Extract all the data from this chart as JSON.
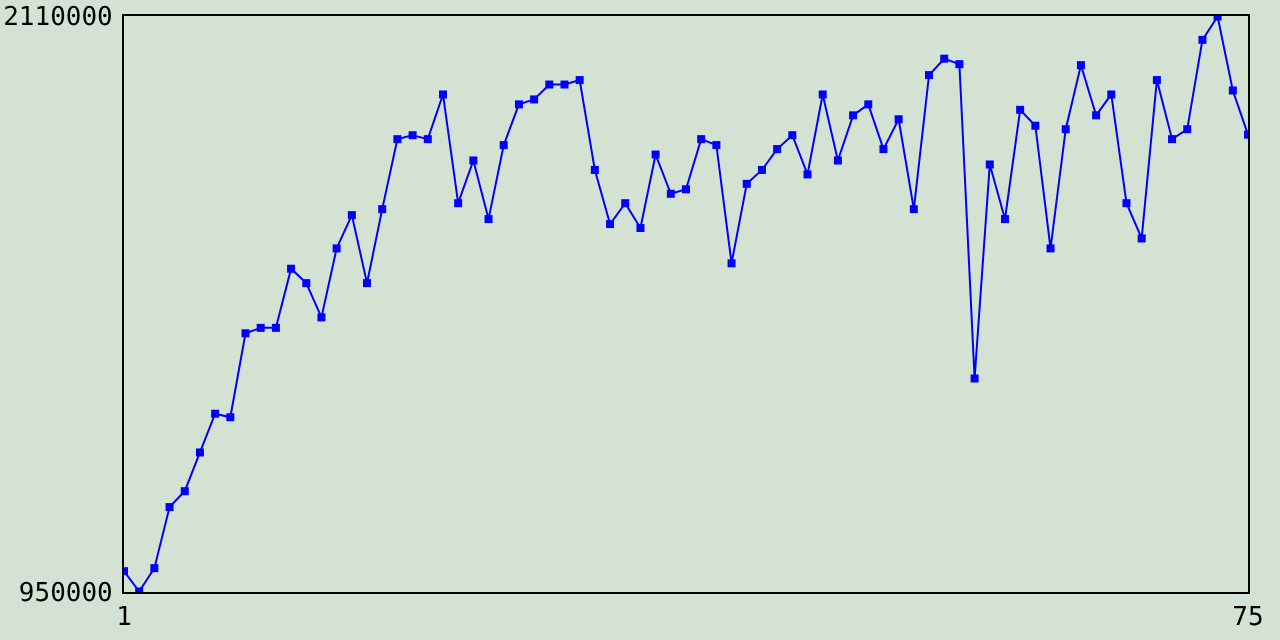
{
  "chart_data": {
    "type": "line",
    "x": [
      1,
      2,
      3,
      4,
      5,
      6,
      7,
      8,
      9,
      10,
      11,
      12,
      13,
      14,
      15,
      16,
      17,
      18,
      19,
      20,
      21,
      22,
      23,
      24,
      25,
      26,
      27,
      28,
      29,
      30,
      31,
      32,
      33,
      34,
      35,
      36,
      37,
      38,
      39,
      40,
      41,
      42,
      43,
      44,
      45,
      46,
      47,
      48,
      49,
      50,
      51,
      52,
      53,
      54,
      55,
      56,
      57,
      58,
      59,
      60,
      61,
      62,
      63,
      64,
      65,
      66,
      67,
      68,
      69,
      70,
      71,
      72,
      73,
      74,
      75
    ],
    "series": [
      {
        "color": "#0000ff",
        "values": [
          992000,
          951000,
          998000,
          1121000,
          1153000,
          1231000,
          1309000,
          1302000,
          1471000,
          1482000,
          1482000,
          1601000,
          1572000,
          1503000,
          1642000,
          1709000,
          1572000,
          1721000,
          1862000,
          1870000,
          1862000,
          1952000,
          1733000,
          1819000,
          1701000,
          1850000,
          1932000,
          1942000,
          1972000,
          1972000,
          1981000,
          1800000,
          1691000,
          1733000,
          1683000,
          1831000,
          1752000,
          1761000,
          1862000,
          1850000,
          1612000,
          1772000,
          1800000,
          1842000,
          1870000,
          1791000,
          1952000,
          1819000,
          1910000,
          1932000,
          1842000,
          1902000,
          1721000,
          1991000,
          2024000,
          2013000,
          1380000,
          1811000,
          1701000,
          1921000,
          1889000,
          1642000,
          1882000,
          2011000,
          1910000,
          1952000,
          1733000,
          1662000,
          1981000,
          1862000,
          1882000,
          2062000,
          2109000,
          1960000,
          1871000
        ]
      }
    ],
    "xlim": [
      1,
      75
    ],
    "xticks": [
      1,
      75
    ],
    "ylim": [
      950000,
      2110000
    ],
    "yticks": [
      950000,
      2110000
    ],
    "marker": "square",
    "line_style": "solid"
  }
}
